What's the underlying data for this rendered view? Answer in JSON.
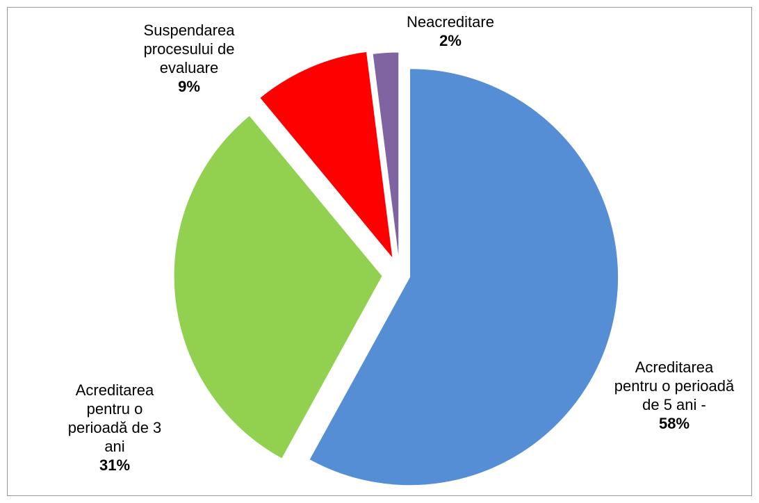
{
  "chart_data": {
    "type": "pie",
    "categories": [
      "Acreditarea pentru o perioadă de 5 ani -",
      "Acreditarea pentru o perioadă de 3 ani",
      "Suspendarea procesului de evaluare",
      "Neacreditare"
    ],
    "values": [
      58,
      31,
      9,
      2
    ],
    "value_labels": [
      "58%",
      "31%",
      "9%",
      "2%"
    ],
    "colors": [
      "#558ed5",
      "#92d050",
      "#ff0000",
      "#8064a2"
    ]
  }
}
